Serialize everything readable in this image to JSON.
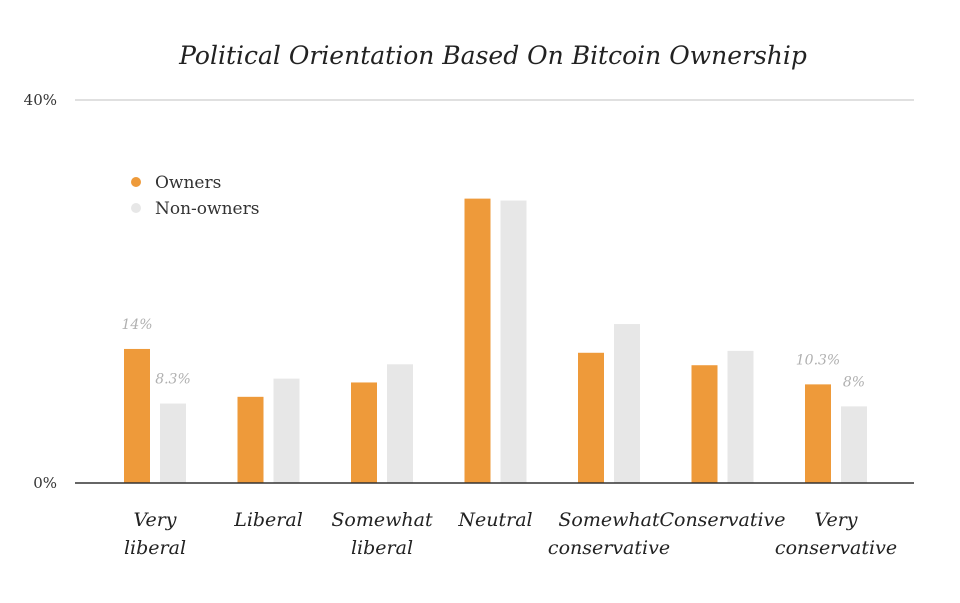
{
  "chart_data": {
    "type": "bar",
    "title": "Political Orientation Based On Bitcoin Ownership",
    "xlabel": "",
    "ylabel": "",
    "ylim": [
      0,
      40
    ],
    "yticks": [
      "0%",
      "40%"
    ],
    "ytick_values": [
      0,
      40
    ],
    "categories": [
      [
        "Very",
        "liberal"
      ],
      [
        "Liberal"
      ],
      [
        "Somewhat",
        "liberal"
      ],
      [
        "Neutral"
      ],
      [
        "Somewhat",
        "conservative"
      ],
      [
        "Conservative"
      ],
      [
        "Very",
        "conservative"
      ]
    ],
    "series": [
      {
        "name": "Owners",
        "color": "#ee9a3a",
        "values": [
          14,
          9,
          10.5,
          29.7,
          13.6,
          12.3,
          10.3
        ]
      },
      {
        "name": "Non-owners",
        "color": "#e7e7e7",
        "values": [
          8.3,
          10.9,
          12.4,
          29.5,
          16.6,
          13.8,
          8
        ]
      }
    ],
    "data_labels": [
      {
        "series": 0,
        "index": 0,
        "text": "14%"
      },
      {
        "series": 1,
        "index": 0,
        "text": "8.3%"
      },
      {
        "series": 0,
        "index": 6,
        "text": "10.3%"
      },
      {
        "series": 1,
        "index": 6,
        "text": "8%"
      }
    ],
    "legend_position": "upper-left",
    "grid": "top line only"
  }
}
